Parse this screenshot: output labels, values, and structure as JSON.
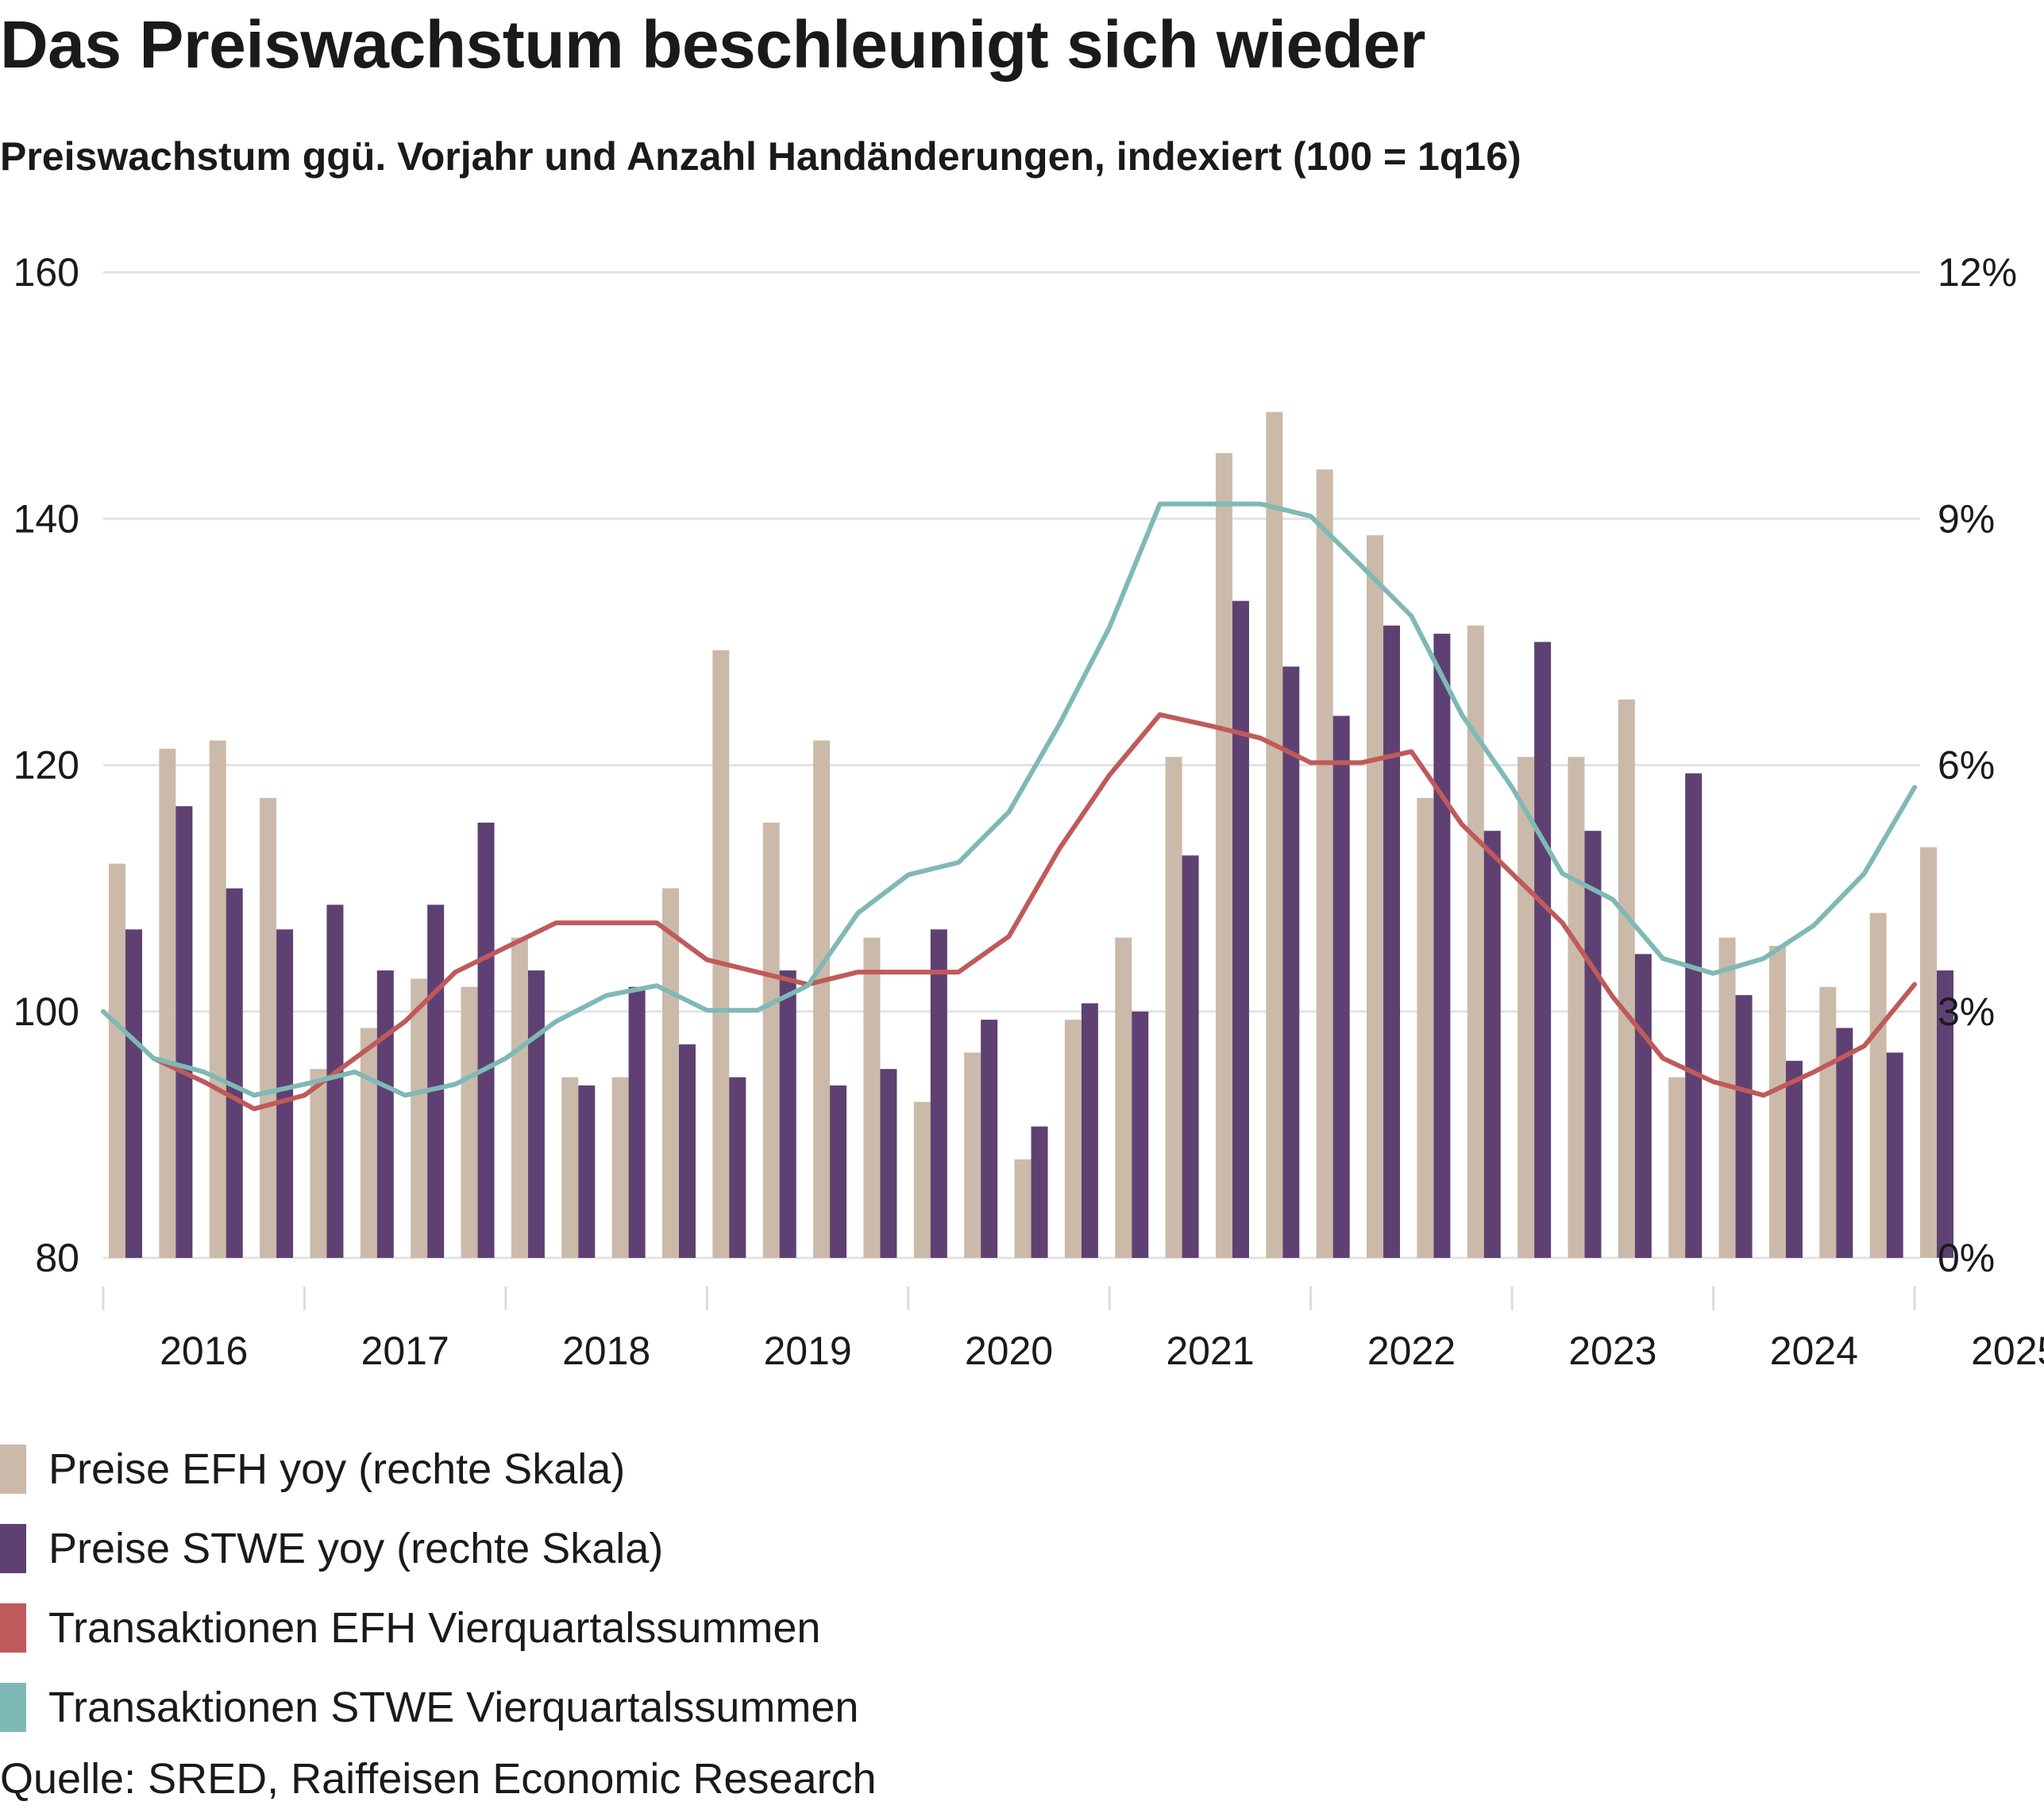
{
  "title": "Das Preiswachstum beschleunigt sich wieder",
  "subtitle": "Preiswachstum ggü. Vorjahr und Anzahl Handänderungen, indexiert (100 = 1q16)",
  "source": "Quelle: SRED, Raiffeisen Economic Research",
  "chart_data": {
    "type": "bar",
    "title": "Preiswachstum ggü. Vorjahr und Anzahl Handänderungen, indexiert (100 = 1q16)",
    "x": [
      "1q16",
      "2q16",
      "3q16",
      "4q16",
      "1q17",
      "2q17",
      "3q17",
      "4q17",
      "1q18",
      "2q18",
      "3q18",
      "4q18",
      "1q19",
      "2q19",
      "3q19",
      "4q19",
      "1q20",
      "2q20",
      "3q20",
      "4q20",
      "1q21",
      "2q21",
      "3q21",
      "4q21",
      "1q22",
      "2q22",
      "3q22",
      "4q22",
      "1q23",
      "2q23",
      "3q23",
      "4q23",
      "1q24",
      "2q24",
      "3q24",
      "4q24",
      "1q25"
    ],
    "x_tick_labels": [
      "2016",
      "2017",
      "2018",
      "2019",
      "2020",
      "2021",
      "2022",
      "2023",
      "2024",
      "2025"
    ],
    "y_left": {
      "ticks": [
        "80",
        "100",
        "120",
        "140",
        "160"
      ],
      "range": [
        80,
        160
      ]
    },
    "y_right": {
      "ticks": [
        "0%",
        "3%",
        "6%",
        "9%",
        "12%"
      ],
      "range": [
        0,
        12
      ]
    },
    "grid": true,
    "legend_position": "bottom",
    "series": [
      {
        "name": "Preise EFH yoy (rechte Skala)",
        "type": "bar",
        "axis": "right",
        "color": "#cbbaa9",
        "values": [
          4.8,
          6.2,
          6.3,
          5.6,
          2.3,
          2.8,
          3.4,
          3.3,
          3.9,
          2.2,
          2.2,
          4.5,
          7.4,
          5.3,
          6.3,
          3.9,
          1.9,
          2.5,
          1.2,
          2.9,
          3.9,
          6.1,
          9.8,
          10.3,
          9.6,
          8.8,
          5.6,
          7.7,
          6.1,
          6.1,
          6.8,
          2.2,
          3.9,
          3.8,
          3.3,
          4.2,
          5.0
        ]
      },
      {
        "name": "Preise STWE yoy (rechte Skala)",
        "type": "bar",
        "axis": "right",
        "color": "#5e4172",
        "values": [
          4.0,
          5.5,
          4.5,
          4.0,
          4.3,
          3.5,
          4.3,
          5.3,
          3.5,
          2.1,
          3.3,
          2.6,
          2.2,
          3.5,
          2.1,
          2.3,
          4.0,
          2.9,
          1.6,
          3.1,
          3.0,
          4.9,
          8.0,
          7.2,
          6.6,
          7.7,
          7.6,
          5.2,
          7.5,
          5.2,
          3.7,
          5.9,
          3.2,
          2.4,
          2.8,
          2.5,
          3.5
        ]
      },
      {
        "name": "Transaktionen EFH Vierquartalssummen",
        "type": "line",
        "axis": "left",
        "color": "#c05a5a",
        "values": [
          null,
          96.2,
          94.3,
          92.1,
          93.2,
          96.2,
          99.2,
          103.2,
          105.2,
          107.2,
          107.2,
          107.2,
          104.2,
          103.2,
          102.2,
          103.2,
          103.2,
          103.2,
          106.1,
          113.2,
          119.2,
          124.1,
          123.2,
          122.2,
          120.2,
          120.2,
          121.1,
          115.2,
          111.2,
          107.2,
          101.2,
          96.2,
          94.3,
          93.2,
          95.1,
          97.2,
          102.2
        ]
      },
      {
        "name": "Transaktionen STWE Vierquartalssummen",
        "type": "line",
        "axis": "left",
        "color": "#7fb9b5",
        "values": [
          100,
          96.2,
          95.1,
          93.2,
          94.1,
          95.1,
          93.2,
          94.1,
          96.2,
          99.2,
          101.3,
          102.1,
          100.1,
          100.1,
          102.1,
          108,
          111.1,
          112.1,
          116.2,
          123.3,
          131.2,
          141.2,
          141.2,
          141.2,
          140.2,
          136.2,
          132.1,
          124.1,
          118.2,
          111.2,
          109.1,
          104.3,
          103.1,
          104.3,
          107,
          111.2,
          118.2
        ]
      }
    ]
  }
}
